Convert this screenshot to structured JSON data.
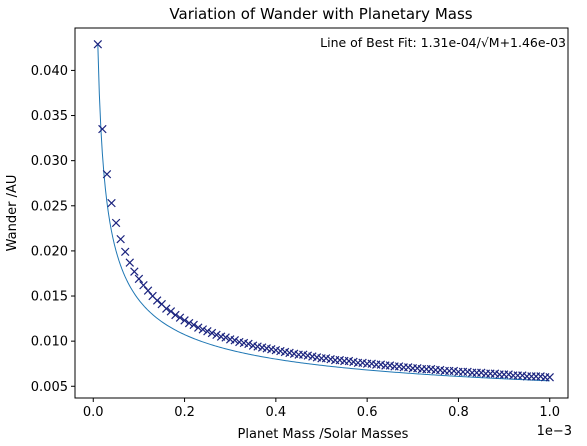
{
  "chart_data": {
    "type": "scatter",
    "title": "Variation of Wander with Planetary Mass",
    "xlabel": "Planet Mass /Solar Masses",
    "ylabel": "Wander /AU",
    "x_offset_label": "1e−3",
    "annotation": "Line of Best Fit: 1.31e-04/√M+1.46e-03",
    "xlim": [
      -0.04,
      1.04
    ],
    "ylim": [
      0.0037,
      0.0447
    ],
    "xticks": [
      0.0,
      0.2,
      0.4,
      0.6,
      0.8,
      1.0
    ],
    "xtick_labels": [
      "0.0",
      "0.2",
      "0.4",
      "0.6",
      "0.8",
      "1.0"
    ],
    "yticks": [
      0.005,
      0.01,
      0.015,
      0.02,
      0.025,
      0.03,
      0.035,
      0.04
    ],
    "ytick_labels": [
      "0.005",
      "0.010",
      "0.015",
      "0.020",
      "0.025",
      "0.030",
      "0.035",
      "0.040"
    ],
    "grid": false,
    "colors": {
      "marker": "#1a237e",
      "fit_line": "#1f77b4",
      "axes": "#000000"
    },
    "series": [
      {
        "marker": "x",
        "x": [
          0.01,
          0.02,
          0.03,
          0.04,
          0.05,
          0.06,
          0.07,
          0.08,
          0.09,
          0.1,
          0.11,
          0.12,
          0.13,
          0.14,
          0.15,
          0.16,
          0.17,
          0.18,
          0.19,
          0.2,
          0.21,
          0.22,
          0.23,
          0.24,
          0.25,
          0.26,
          0.27,
          0.28,
          0.29,
          0.3,
          0.31,
          0.32,
          0.33,
          0.34,
          0.35,
          0.36,
          0.37,
          0.38,
          0.39,
          0.4,
          0.41,
          0.42,
          0.43,
          0.44,
          0.45,
          0.46,
          0.47,
          0.48,
          0.49,
          0.5,
          0.51,
          0.52,
          0.53,
          0.54,
          0.55,
          0.56,
          0.57,
          0.58,
          0.59,
          0.6,
          0.61,
          0.62,
          0.63,
          0.64,
          0.65,
          0.66,
          0.67,
          0.68,
          0.69,
          0.7,
          0.71,
          0.72,
          0.73,
          0.74,
          0.75,
          0.76,
          0.77,
          0.78,
          0.79,
          0.8,
          0.81,
          0.82,
          0.83,
          0.84,
          0.85,
          0.86,
          0.87,
          0.88,
          0.89,
          0.9,
          0.91,
          0.92,
          0.93,
          0.94,
          0.95,
          0.96,
          0.97,
          0.98,
          0.99,
          1.0
        ],
        "y": [
          0.0429,
          0.0335,
          0.0285,
          0.0253,
          0.0231,
          0.0213,
          0.0199,
          0.0187,
          0.0177,
          0.0169,
          0.0162,
          0.0156,
          0.015,
          0.0145,
          0.0141,
          0.0136,
          0.0133,
          0.0129,
          0.0126,
          0.0123,
          0.012,
          0.0118,
          0.0115,
          0.0113,
          0.0111,
          0.0109,
          0.0107,
          0.0105,
          0.0104,
          0.0102,
          0.0101,
          0.0099,
          0.0098,
          0.0097,
          0.0095,
          0.0094,
          0.0093,
          0.0092,
          0.0091,
          0.009,
          0.0089,
          0.0088,
          0.0087,
          0.0086,
          0.0085,
          0.0085,
          0.0084,
          0.0083,
          0.0082,
          0.0081,
          0.0081,
          0.008,
          0.0079,
          0.0079,
          0.0078,
          0.0078,
          0.0077,
          0.0076,
          0.0076,
          0.0075,
          0.0075,
          0.0074,
          0.0074,
          0.0073,
          0.0073,
          0.0072,
          0.0072,
          0.0071,
          0.0071,
          0.007,
          0.007,
          0.0069,
          0.0069,
          0.0069,
          0.0068,
          0.0068,
          0.0067,
          0.0067,
          0.0067,
          0.0066,
          0.0066,
          0.0066,
          0.0065,
          0.0065,
          0.0065,
          0.0064,
          0.0064,
          0.0064,
          0.0063,
          0.0063,
          0.0063,
          0.0062,
          0.0062,
          0.0062,
          0.0061,
          0.0061,
          0.0061,
          0.0061,
          0.006,
          0.006
        ]
      }
    ],
    "fit": {
      "a": 0.000131,
      "b": 0.00146,
      "x_multiplier": 0.001,
      "x_range": [
        0.01,
        1.0
      ]
    }
  }
}
